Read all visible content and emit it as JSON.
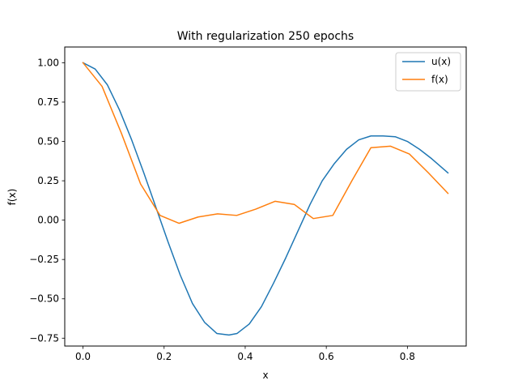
{
  "chart_data": {
    "type": "line",
    "title": "With regularization 250 epochs",
    "xlabel": "x",
    "ylabel": "f(x)",
    "xlim": [
      -0.045,
      0.945
    ],
    "ylim": [
      -0.8,
      1.1
    ],
    "xticks": [
      0.0,
      0.2,
      0.4,
      0.6,
      0.8
    ],
    "xtick_labels": [
      "0.0",
      "0.2",
      "0.4",
      "0.6",
      "0.8"
    ],
    "yticks": [
      -0.75,
      -0.5,
      -0.25,
      0.0,
      0.25,
      0.5,
      0.75,
      1.0
    ],
    "ytick_labels": [
      "−0.75",
      "−0.50",
      "−0.25",
      "0.00",
      "0.25",
      "0.50",
      "0.75",
      "1.00"
    ],
    "grid": false,
    "legend_position": "top-right",
    "series": [
      {
        "name": "u(x)",
        "color": "#1f77b4",
        "x": [
          0.0,
          0.03,
          0.06,
          0.09,
          0.12,
          0.15,
          0.18,
          0.21,
          0.24,
          0.27,
          0.3,
          0.33,
          0.36,
          0.38,
          0.41,
          0.44,
          0.47,
          0.5,
          0.53,
          0.56,
          0.59,
          0.62,
          0.65,
          0.68,
          0.71,
          0.74,
          0.77,
          0.8,
          0.83,
          0.86,
          0.9
        ],
        "y": [
          1.0,
          0.96,
          0.86,
          0.7,
          0.51,
          0.3,
          0.08,
          -0.14,
          -0.35,
          -0.53,
          -0.65,
          -0.72,
          -0.73,
          -0.72,
          -0.66,
          -0.55,
          -0.4,
          -0.24,
          -0.07,
          0.1,
          0.25,
          0.36,
          0.45,
          0.51,
          0.535,
          0.535,
          0.53,
          0.5,
          0.45,
          0.39,
          0.3
        ]
      },
      {
        "name": "f(x)",
        "color": "#ff7f0e",
        "x": [
          0.0,
          0.047,
          0.095,
          0.142,
          0.19,
          0.237,
          0.284,
          0.332,
          0.379,
          0.426,
          0.474,
          0.521,
          0.568,
          0.616,
          0.663,
          0.71,
          0.758,
          0.805,
          0.852,
          0.9
        ],
        "y": [
          1.0,
          0.85,
          0.55,
          0.23,
          0.03,
          -0.02,
          0.02,
          0.04,
          0.03,
          0.07,
          0.12,
          0.1,
          0.01,
          0.03,
          0.25,
          0.46,
          0.47,
          0.42,
          0.3,
          0.17
        ]
      }
    ]
  }
}
